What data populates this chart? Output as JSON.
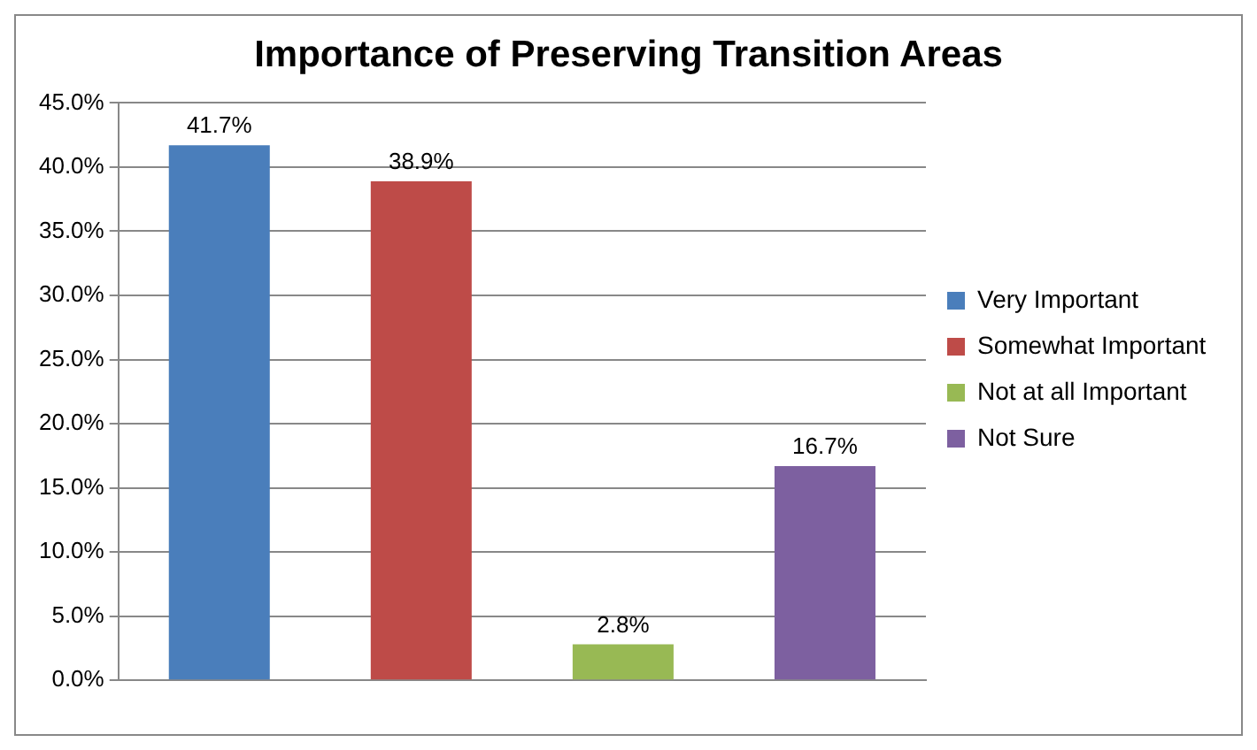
{
  "chart_data": {
    "type": "bar",
    "title": "Importance of Preserving Transition Areas",
    "categories": [
      null
    ],
    "series": [
      {
        "name": "Very Important",
        "color": "#4a7ebb",
        "values": [
          41.7
        ],
        "value_labels": [
          "41.7%"
        ]
      },
      {
        "name": "Somewhat Important",
        "color": "#be4b48",
        "values": [
          38.9
        ],
        "value_labels": [
          "38.9%"
        ]
      },
      {
        "name": "Not at all Important",
        "color": "#98b954",
        "values": [
          2.8
        ],
        "value_labels": [
          "2.8%"
        ]
      },
      {
        "name": "Not Sure",
        "color": "#7d60a0",
        "values": [
          16.7
        ],
        "value_labels": [
          "16.7%"
        ]
      }
    ],
    "ylim": [
      0,
      45
    ],
    "yticks": [
      {
        "value": 0,
        "label": "0.0%"
      },
      {
        "value": 5,
        "label": "5.0%"
      },
      {
        "value": 10,
        "label": "10.0%"
      },
      {
        "value": 15,
        "label": "15.0%"
      },
      {
        "value": 20,
        "label": "20.0%"
      },
      {
        "value": 25,
        "label": "25.0%"
      },
      {
        "value": 30,
        "label": "30.0%"
      },
      {
        "value": 35,
        "label": "35.0%"
      },
      {
        "value": 40,
        "label": "40.0%"
      },
      {
        "value": 45,
        "label": "45.0%"
      }
    ],
    "grid": "y",
    "legend": "right"
  }
}
